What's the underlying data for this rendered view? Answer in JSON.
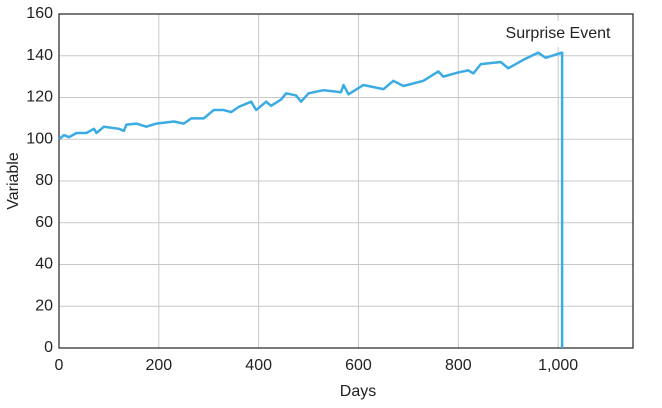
{
  "chart_data": {
    "type": "line",
    "x_label": "Days",
    "y_label": "Variable",
    "annotation": "Surprise Event",
    "x": [
      0,
      10,
      20,
      35,
      55,
      70,
      75,
      90,
      120,
      130,
      135,
      155,
      175,
      195,
      230,
      250,
      265,
      290,
      310,
      330,
      345,
      360,
      385,
      395,
      415,
      425,
      445,
      455,
      475,
      485,
      500,
      530,
      565,
      570,
      580,
      610,
      650,
      670,
      690,
      730,
      760,
      770,
      800,
      820,
      830,
      845,
      885,
      900,
      930,
      960,
      975,
      1008,
      1008
    ],
    "series": [
      {
        "name": "Variable",
        "color": "#3aabe3",
        "values": [
          100,
          102,
          101,
          103,
          103,
          105,
          103,
          106,
          105,
          104,
          107,
          107.5,
          106,
          107.5,
          108.5,
          107.5,
          110,
          110,
          114,
          114,
          113,
          115.5,
          118,
          114,
          118,
          116,
          119,
          122,
          121,
          118,
          122,
          123.5,
          122.5,
          126,
          121.5,
          126,
          124,
          128,
          125.5,
          128,
          132.5,
          130,
          132,
          133,
          131.5,
          136,
          137,
          134,
          138,
          141.5,
          139,
          141.5,
          0
        ]
      }
    ],
    "xlim": [
      0,
      1150
    ],
    "ylim": [
      0,
      160
    ],
    "xticks": [
      0,
      200,
      400,
      600,
      800,
      {
        "value": 1000,
        "label": "1,000"
      }
    ],
    "yticks": [
      0,
      20,
      40,
      60,
      80,
      100,
      120,
      140,
      160
    ],
    "grid": true
  }
}
